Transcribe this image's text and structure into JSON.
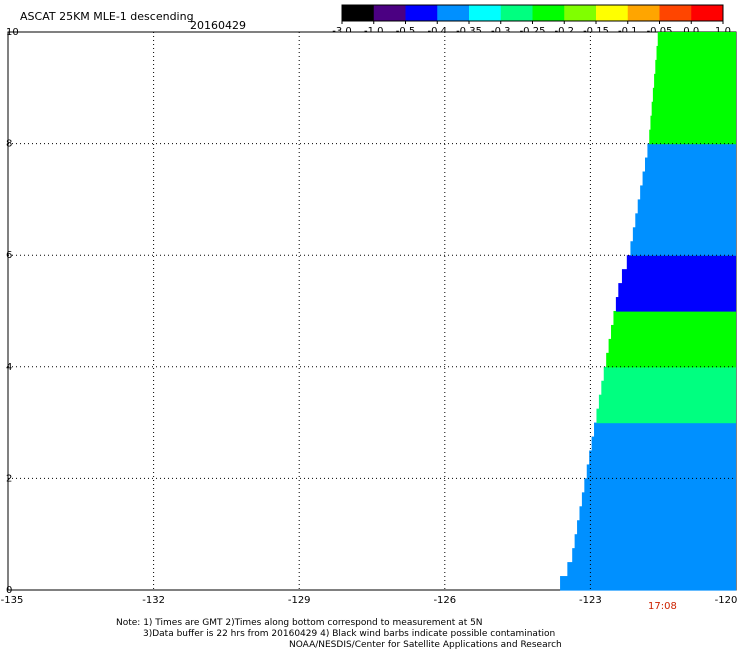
{
  "header": {
    "title": "ASCAT 25KM MLE-1 descending",
    "date": "20160429"
  },
  "colorbar": {
    "tick_labels": [
      "-3.0",
      "-1.0",
      "-0.5",
      "-0.4",
      "-0.35",
      "-0.3",
      "-0.25",
      "-0.2",
      "-0.15",
      "-0.1",
      "-0.05",
      "0.0",
      "1.0"
    ],
    "colors": [
      "#000000",
      "#4b0082",
      "#0000ff",
      "#0090ff",
      "#00ffff",
      "#00ff80",
      "#00ff00",
      "#80ff00",
      "#ffff00",
      "#ffa500",
      "#ff4500",
      "#ff0000"
    ]
  },
  "pass_time": "17:08",
  "notes": {
    "line1": "Note: 1) Times are GMT 2)Times along bottom correspond to measurement at 5N",
    "line2": "3)Data buffer is 22 hrs from 20160429 4) Black wind barbs indicate possible contamination",
    "line3": "NOAA/NESDIS/Center for Satellite Applications and Research"
  },
  "chart_data": {
    "type": "heatmap",
    "title": "ASCAT 25KM MLE-1 descending",
    "xlabel": "",
    "ylabel": "",
    "xlim": [
      -135,
      -120
    ],
    "ylim": [
      0,
      10
    ],
    "x_tick_labels": [
      "-135",
      "-132",
      "-129",
      "-126",
      "-123",
      "-120"
    ],
    "y_tick_labels": [
      "0",
      "2",
      "4",
      "6",
      "8",
      "10"
    ],
    "grid": true,
    "swath_west_edge": [
      [
        0.0,
        -123.7
      ],
      [
        0.5,
        -123.4
      ],
      [
        1.0,
        -123.3
      ],
      [
        1.5,
        -123.2
      ],
      [
        2.0,
        -123.1
      ],
      [
        2.5,
        -123.0
      ],
      [
        3.0,
        -122.9
      ],
      [
        3.5,
        -122.8
      ],
      [
        4.0,
        -122.7
      ],
      [
        4.5,
        -122.6
      ],
      [
        5.0,
        -122.5
      ],
      [
        5.5,
        -122.4
      ],
      [
        6.0,
        -122.2
      ],
      [
        6.5,
        -122.1
      ],
      [
        7.0,
        -122.0
      ],
      [
        7.5,
        -121.9
      ],
      [
        8.0,
        -121.8
      ],
      [
        9.0,
        -121.7
      ],
      [
        10.0,
        -121.6
      ]
    ],
    "regions": [
      {
        "lat": [
          0.0,
          3.0
        ],
        "value": -0.4
      },
      {
        "lat": [
          3.0,
          4.0
        ],
        "value": -0.3
      },
      {
        "lat": [
          4.0,
          5.5
        ],
        "value": -0.25
      },
      {
        "lat": [
          5.0,
          6.0
        ],
        "value": -0.5
      },
      {
        "lat": [
          6.0,
          8.0
        ],
        "value": -0.4
      },
      {
        "lat": [
          8.0,
          10.0
        ],
        "value": -0.25
      }
    ]
  }
}
